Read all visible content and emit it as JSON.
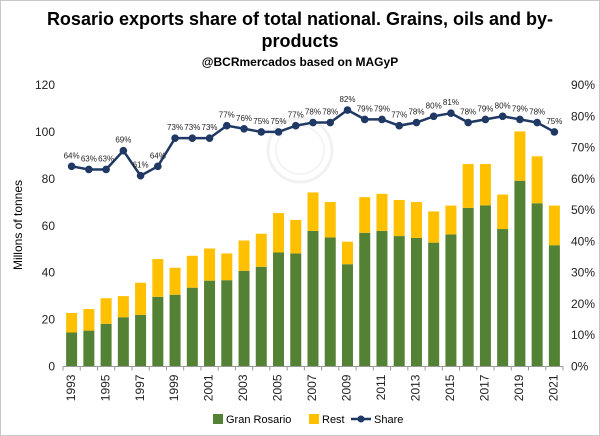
{
  "header": {
    "title": "Rosario exports share of total national. Grains, oils and by-products",
    "subtitle": "@BCRmercados based on MAGyP"
  },
  "chart_data": {
    "type": "bar",
    "title": "Rosario exports share of total national. Grains, oils and by-products",
    "subtitle": "@BCRmercados based on MAGyP",
    "ylabel": "Millons of tonnes",
    "ylim": [
      0,
      120
    ],
    "yticks": [
      0,
      20,
      40,
      60,
      80,
      100,
      120
    ],
    "y2lim": [
      0,
      0.9
    ],
    "y2ticks": [
      "0%",
      "10%",
      "20%",
      "30%",
      "40%",
      "50%",
      "60%",
      "70%",
      "80%",
      "90%"
    ],
    "stacked": true,
    "grid": false,
    "legend_position": "bottom",
    "categories": [
      "1993",
      "1994",
      "1995",
      "1996",
      "1997",
      "1998",
      "1999",
      "2000",
      "2001",
      "2002",
      "2003",
      "2004",
      "2005",
      "2006",
      "2007",
      "2008",
      "2009",
      "2010",
      "2011",
      "2012",
      "2013",
      "2014",
      "2015",
      "2016",
      "2017",
      "2018",
      "2019",
      "2020",
      "2021"
    ],
    "x_tick_labels": [
      "1993",
      "1995",
      "1997",
      "1999",
      "2001",
      "2003",
      "2005",
      "2007",
      "2009",
      "2011",
      "2013",
      "2015",
      "2017",
      "2019",
      "2021"
    ],
    "series": [
      {
        "name": "Gran Rosario",
        "type": "bar",
        "color": "#548235",
        "values": [
          14.5,
          15.3,
          18.2,
          21.0,
          22.0,
          29.7,
          30.6,
          33.6,
          36.6,
          36.8,
          40.8,
          42.5,
          48.6,
          48.2,
          57.8,
          55.0,
          43.6,
          57.0,
          57.8,
          55.6,
          54.8,
          52.8,
          56.3,
          67.6,
          68.7,
          58.6,
          79.2,
          69.6,
          51.7
        ]
      },
      {
        "name": "Rest",
        "type": "bar",
        "color": "#ffc000",
        "values": [
          8.3,
          9.2,
          10.9,
          9.0,
          13.7,
          16.1,
          11.5,
          13.6,
          13.7,
          11.4,
          12.9,
          14.1,
          16.8,
          14.3,
          16.4,
          15.1,
          9.6,
          15.2,
          15.8,
          15.4,
          15.3,
          13.3,
          12.3,
          18.7,
          17.6,
          14.7,
          21.0,
          20.0,
          16.9
        ]
      },
      {
        "name": "Share",
        "type": "line",
        "axis": "secondary",
        "color": "#1f3864",
        "values": [
          0.64,
          0.63,
          0.63,
          0.69,
          0.61,
          0.64,
          0.73,
          0.73,
          0.73,
          0.77,
          0.76,
          0.75,
          0.75,
          0.77,
          0.78,
          0.78,
          0.82,
          0.79,
          0.79,
          0.77,
          0.78,
          0.8,
          0.81,
          0.78,
          0.79,
          0.8,
          0.79,
          0.78,
          0.75
        ],
        "labels": [
          "64%",
          "63%",
          "63%",
          "69%",
          "61%",
          "64%",
          "73%",
          "73%",
          "73%",
          "77%",
          "76%",
          "75%",
          "75%",
          "77%",
          "78%",
          "78%",
          "82%",
          "79%",
          "79%",
          "77%",
          "78%",
          "80%",
          "81%",
          "78%",
          "79%",
          "80%",
          "79%",
          "78%",
          "75%"
        ]
      }
    ]
  }
}
